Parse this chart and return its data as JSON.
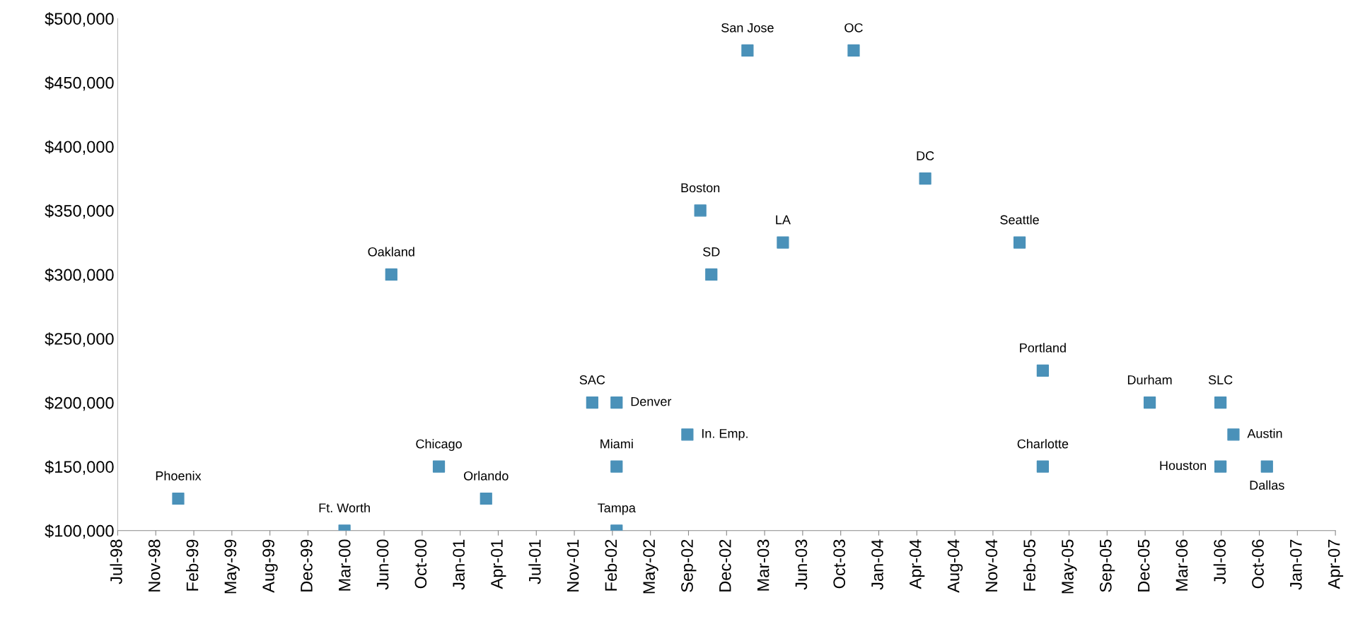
{
  "chart_data": {
    "type": "scatter",
    "marker": "square",
    "grid": false,
    "legend": false,
    "x": [
      "1998-12-31",
      "2000-03-12",
      "2000-07-13",
      "2000-11-15",
      "2001-03-19",
      "2001-12-23",
      "2002-02-25",
      "2002-02-25",
      "2002-02-25",
      "2002-08-30",
      "2002-10-03",
      "2002-11-01",
      "2003-02-04",
      "2003-05-08",
      "2003-11-10",
      "2004-05-16",
      "2005-01-19",
      "2005-03-21",
      "2005-03-21",
      "2005-12-27",
      "2006-07-01",
      "2006-07-01",
      "2006-08-04",
      "2006-10-31"
    ],
    "series": [
      {
        "color": "#4a91b9",
        "values": [
          125000,
          100000,
          300000,
          150000,
          125000,
          200000,
          200000,
          150000,
          100000,
          175000,
          350000,
          300000,
          475000,
          325000,
          475000,
          375000,
          325000,
          225000,
          150000,
          200000,
          200000,
          150000,
          175000,
          150000
        ],
        "value_labels": [
          "Phoenix",
          "Ft. Worth",
          "Oakland",
          "Chicago",
          "Orlando",
          "SAC",
          "Denver",
          "Miami",
          "Tampa",
          "In. Emp.",
          "Boston",
          "SD",
          "San Jose",
          "LA",
          "OC",
          "DC",
          "Seattle",
          "Portland",
          "Charlotte",
          "Durham",
          "SLC",
          "Houston",
          "Austin",
          "Dallas"
        ]
      }
    ],
    "ylim": [
      100000,
      500000
    ],
    "yticks": [
      {
        "value": 100000,
        "label": "$100,000"
      },
      {
        "value": 150000,
        "label": "$150,000"
      },
      {
        "value": 200000,
        "label": "$200,000"
      },
      {
        "value": 250000,
        "label": "$250,000"
      },
      {
        "value": 300000,
        "label": "$300,000"
      },
      {
        "value": 350000,
        "label": "$350,000"
      },
      {
        "value": 400000,
        "label": "$400,000"
      },
      {
        "value": 450000,
        "label": "$450,000"
      },
      {
        "value": 500000,
        "label": "$500,000"
      }
    ],
    "xlim": [
      "1998-07-25",
      "2007-04-29"
    ],
    "xticks": [
      {
        "value": "1998-07-25",
        "label": "Jul-98"
      },
      {
        "value": "1998-11-02",
        "label": "Nov-98"
      },
      {
        "value": "1999-02-10",
        "label": "Feb-99"
      },
      {
        "value": "1999-05-21",
        "label": "May-99"
      },
      {
        "value": "1999-08-29",
        "label": "Aug-99"
      },
      {
        "value": "1999-12-07",
        "label": "Dec-99"
      },
      {
        "value": "2000-03-16",
        "label": "Mar-00"
      },
      {
        "value": "2000-06-24",
        "label": "Jun-00"
      },
      {
        "value": "2000-10-02",
        "label": "Oct-00"
      },
      {
        "value": "2001-01-10",
        "label": "Jan-01"
      },
      {
        "value": "2001-04-20",
        "label": "Apr-01"
      },
      {
        "value": "2001-07-29",
        "label": "Jul-01"
      },
      {
        "value": "2001-11-06",
        "label": "Nov-01"
      },
      {
        "value": "2002-02-14",
        "label": "Feb-02"
      },
      {
        "value": "2002-05-25",
        "label": "May-02"
      },
      {
        "value": "2002-09-02",
        "label": "Sep-02"
      },
      {
        "value": "2002-12-11",
        "label": "Dec-02"
      },
      {
        "value": "2003-03-21",
        "label": "Mar-03"
      },
      {
        "value": "2003-06-29",
        "label": "Jun-03"
      },
      {
        "value": "2003-10-07",
        "label": "Oct-03"
      },
      {
        "value": "2004-01-15",
        "label": "Jan-04"
      },
      {
        "value": "2004-04-24",
        "label": "Apr-04"
      },
      {
        "value": "2004-08-02",
        "label": "Aug-04"
      },
      {
        "value": "2004-11-10",
        "label": "Nov-04"
      },
      {
        "value": "2005-02-18",
        "label": "Feb-05"
      },
      {
        "value": "2005-05-29",
        "label": "May-05"
      },
      {
        "value": "2005-09-06",
        "label": "Sep-05"
      },
      {
        "value": "2005-12-15",
        "label": "Dec-05"
      },
      {
        "value": "2006-03-25",
        "label": "Mar-06"
      },
      {
        "value": "2006-07-03",
        "label": "Jul-06"
      },
      {
        "value": "2006-10-11",
        "label": "Oct-06"
      },
      {
        "value": "2007-01-19",
        "label": "Jan-07"
      },
      {
        "value": "2007-04-29",
        "label": "Apr-07"
      }
    ]
  }
}
